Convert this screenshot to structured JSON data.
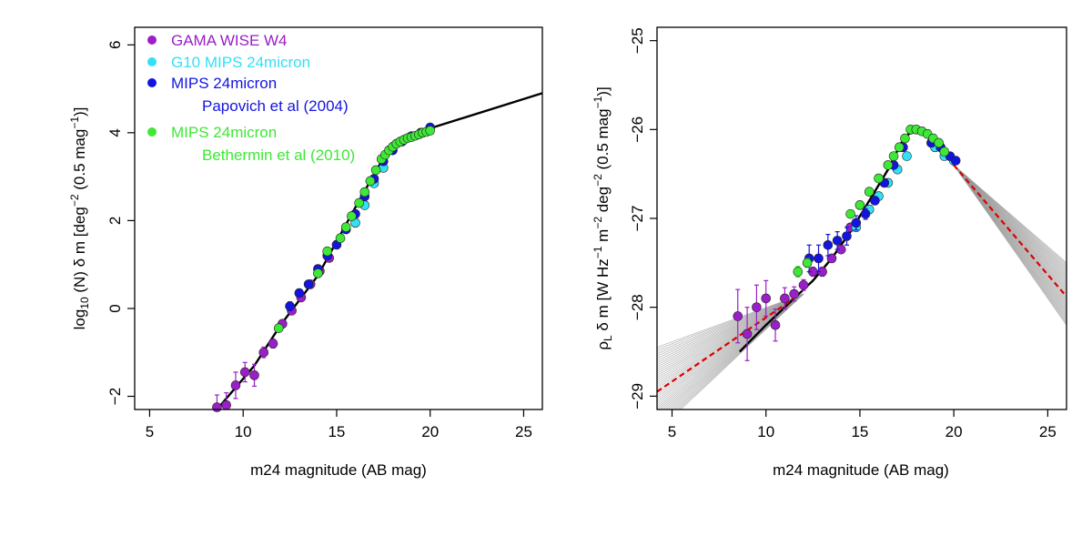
{
  "chart_data": [
    {
      "type": "scatter",
      "xlabel": "m24 magnitude (AB mag)",
      "ylabel": "log10 (N) δ m [deg−2 (0.5 mag−1)]",
      "xlim": [
        4.2,
        26
      ],
      "ylim": [
        -2.3,
        6.4
      ],
      "x_ticks": [
        5,
        10,
        15,
        20,
        25
      ],
      "y_ticks": [
        -2,
        0,
        2,
        4,
        6
      ],
      "legend_placement": "top-left",
      "fit_line": {
        "color": "#000000",
        "x": [
          8.6,
          10.6,
          12.0,
          14.0,
          16.0,
          17.4,
          17.8,
          18.3,
          19.0,
          20.0,
          26.0
        ],
        "y": [
          -2.3,
          -1.3,
          -0.38,
          0.75,
          2.3,
          3.35,
          3.6,
          3.8,
          3.92,
          4.1,
          4.9
        ]
      },
      "series": [
        {
          "name": "GAMA WISE W4",
          "color": "#9A1FC8",
          "x": [
            8.6,
            9.1,
            9.6,
            10.1,
            10.6,
            11.1,
            11.6,
            12.1,
            12.6,
            13.1,
            13.6,
            14.1,
            14.6
          ],
          "y": [
            -2.25,
            -2.2,
            -1.75,
            -1.45,
            -1.52,
            -1.0,
            -0.8,
            -0.35,
            -0.05,
            0.25,
            0.55,
            0.85,
            1.15
          ],
          "err": [
            0.28,
            0.28,
            0.3,
            0.22,
            0.25,
            0.12,
            0.1,
            0.08,
            0.06,
            0.05,
            0.05,
            0.04,
            0.04
          ]
        },
        {
          "name": "G10 MIPS 24micron",
          "color": "#33E0F5",
          "x": [
            16.0,
            16.5,
            17.0,
            17.5
          ],
          "y": [
            1.95,
            2.35,
            2.85,
            3.2
          ],
          "err": [
            0,
            0,
            0,
            0
          ]
        },
        {
          "name": "MIPS 24micron",
          "note": "Papovich et al (2004)",
          "color": "#1414E0",
          "x": [
            12.5,
            13.0,
            13.5,
            14.0,
            14.5,
            15.0,
            15.5,
            16.0,
            16.5,
            17.0,
            17.5,
            18.0,
            18.5,
            19.0,
            19.5,
            20.0
          ],
          "y": [
            0.05,
            0.35,
            0.55,
            0.9,
            1.2,
            1.45,
            1.8,
            2.15,
            2.55,
            2.95,
            3.35,
            3.6,
            3.8,
            3.92,
            4.0,
            4.12
          ],
          "err": [
            0.1,
            0.08,
            0.07,
            0.06,
            0.05,
            0.04,
            0.04,
            0,
            0,
            0,
            0,
            0,
            0,
            0,
            0,
            0
          ]
        },
        {
          "name": "MIPS 24micron",
          "note": "Bethermin et al (2010)",
          "color": "#3EE836",
          "x": [
            11.9,
            14.0,
            14.5,
            15.2,
            15.5,
            15.8,
            16.2,
            16.5,
            16.8,
            17.1,
            17.4,
            17.6,
            17.8,
            18.0,
            18.2,
            18.4,
            18.6,
            18.8,
            19.0,
            19.2,
            19.4,
            19.6,
            19.8,
            20.0
          ],
          "y": [
            -0.45,
            0.8,
            1.3,
            1.6,
            1.85,
            2.1,
            2.4,
            2.65,
            2.9,
            3.15,
            3.4,
            3.5,
            3.6,
            3.68,
            3.75,
            3.8,
            3.84,
            3.88,
            3.9,
            3.93,
            3.96,
            4.0,
            4.02,
            4.05
          ],
          "err": [
            0,
            0,
            0,
            0,
            0,
            0,
            0,
            0,
            0,
            0,
            0,
            0,
            0,
            0,
            0,
            0,
            0,
            0,
            0,
            0,
            0,
            0,
            0,
            0
          ]
        }
      ]
    },
    {
      "type": "scatter",
      "xlabel": "m24 magnitude (AB mag)",
      "ylabel": "ρL δ m [W Hz−1 m−2 deg−2 (0.5 mag−1)]",
      "xlim": [
        4.2,
        26
      ],
      "ylim": [
        -29.15,
        -24.85
      ],
      "x_ticks": [
        5,
        10,
        15,
        20,
        25
      ],
      "y_ticks": [
        -29,
        -28,
        -27,
        -26,
        -25
      ],
      "fit_line": {
        "color": "#000000",
        "x": [
          8.6,
          10.0,
          11.5,
          12.5,
          13.5,
          14.5,
          15.5,
          16.5,
          17.2,
          17.6,
          18.0,
          18.4,
          18.8,
          19.2,
          19.6,
          20.0
        ],
        "y": [
          -28.5,
          -28.2,
          -27.9,
          -27.7,
          -27.45,
          -27.15,
          -26.8,
          -26.45,
          -26.15,
          -26.05,
          -26.02,
          -26.05,
          -26.12,
          -26.22,
          -26.3,
          -26.4
        ]
      },
      "uncertainty_fan": {
        "color": "#9a9a9a",
        "pivot_low": [
          12.0,
          -27.85
        ],
        "pivot_high": [
          20.0,
          -26.4
        ],
        "low_end_x": 4.2,
        "low_end_range": [
          -28.45,
          -29.4
        ],
        "high_end_x": 26.0,
        "high_end_range": [
          -27.5,
          -28.2
        ],
        "count": 40
      },
      "dashed_lines": [
        {
          "color": "#dd0000",
          "x": [
            4.2,
            11.5
          ],
          "y": [
            -28.95,
            -27.9
          ]
        },
        {
          "color": "#dd0000",
          "x": [
            20.0,
            26.0
          ],
          "y": [
            -26.4,
            -27.88
          ]
        }
      ],
      "series": [
        {
          "name": "GAMA WISE W4",
          "color": "#9A1FC8",
          "x": [
            8.5,
            9.0,
            9.5,
            10.0,
            10.5,
            11.0,
            11.5,
            12.0,
            12.5,
            13.0,
            13.5,
            14.0,
            14.5
          ],
          "y": [
            -28.1,
            -28.3,
            -28.0,
            -27.9,
            -28.2,
            -27.9,
            -27.85,
            -27.75,
            -27.6,
            -27.6,
            -27.45,
            -27.35,
            -27.1
          ],
          "err": [
            0.3,
            0.3,
            0.25,
            0.2,
            0.18,
            0.12,
            0.08,
            0.06,
            0.05,
            0.05,
            0.04,
            0.04,
            0.04
          ]
        },
        {
          "name": "G10 MIPS 24micron",
          "color": "#33E0F5",
          "x": [
            14.8,
            15.5,
            16.0,
            16.5,
            17.0,
            17.5,
            19.0,
            19.5,
            20.0
          ],
          "y": [
            -27.1,
            -26.9,
            -26.75,
            -26.6,
            -26.45,
            -26.3,
            -26.2,
            -26.3,
            -26.35
          ],
          "err": [
            0,
            0,
            0,
            0,
            0,
            0,
            0,
            0,
            0
          ]
        },
        {
          "name": "MIPS 24micron",
          "note": "Papovich et al (2004)",
          "color": "#1414E0",
          "x": [
            12.3,
            12.8,
            13.3,
            13.8,
            14.3,
            14.8,
            15.3,
            15.8,
            16.3,
            16.8,
            17.3,
            18.8,
            19.3,
            19.8,
            20.1
          ],
          "y": [
            -27.45,
            -27.45,
            -27.3,
            -27.25,
            -27.2,
            -27.05,
            -26.95,
            -26.8,
            -26.6,
            -26.4,
            -26.2,
            -26.15,
            -26.2,
            -26.3,
            -26.35
          ],
          "err": [
            0.15,
            0.15,
            0.12,
            0.1,
            0.1,
            0.08,
            0.06,
            0,
            0,
            0,
            0,
            0,
            0,
            0,
            0
          ]
        },
        {
          "name": "MIPS 24micron",
          "note": "Bethermin et al (2010)",
          "color": "#3EE836",
          "x": [
            11.7,
            12.2,
            14.5,
            15.0,
            15.5,
            16.0,
            16.5,
            16.8,
            17.1,
            17.4,
            17.7,
            18.0,
            18.3,
            18.6,
            18.9,
            19.2,
            19.5
          ],
          "y": [
            -27.6,
            -27.5,
            -26.95,
            -26.85,
            -26.7,
            -26.55,
            -26.4,
            -26.3,
            -26.2,
            -26.1,
            -26.0,
            -26.0,
            -26.02,
            -26.05,
            -26.1,
            -26.15,
            -26.25
          ],
          "err": [
            0.06,
            0.05,
            0,
            0,
            0,
            0,
            0,
            0,
            0,
            0,
            0,
            0,
            0,
            0,
            0,
            0,
            0
          ]
        }
      ]
    }
  ],
  "legend": {
    "items": [
      {
        "label": "GAMA WISE W4",
        "color": "#9A1FC8"
      },
      {
        "label": "G10 MIPS 24micron",
        "color": "#33E0F5"
      },
      {
        "label": "MIPS 24micron",
        "sub": "Papovich et al (2004)",
        "color": "#1414E0"
      },
      {
        "label": "MIPS 24micron",
        "sub": "Bethermin et al (2010)",
        "color": "#3EE836"
      }
    ]
  },
  "left_ylabel": {
    "prefix": "log",
    "sub": "10",
    "main": " (N) δ m [deg",
    "sup1": "−2",
    "mid": " (0.5 mag",
    "sup2": "−1",
    "end": ")]"
  },
  "right_ylabel": {
    "rho": "ρ",
    "rho_sub": "L",
    "a": " δ m [W Hz",
    "s1": "−1",
    "b": " m",
    "s2": "−2",
    "c": " deg",
    "s3": "−2",
    "d": " (0.5 mag",
    "s4": "−1",
    "e": ")]"
  }
}
